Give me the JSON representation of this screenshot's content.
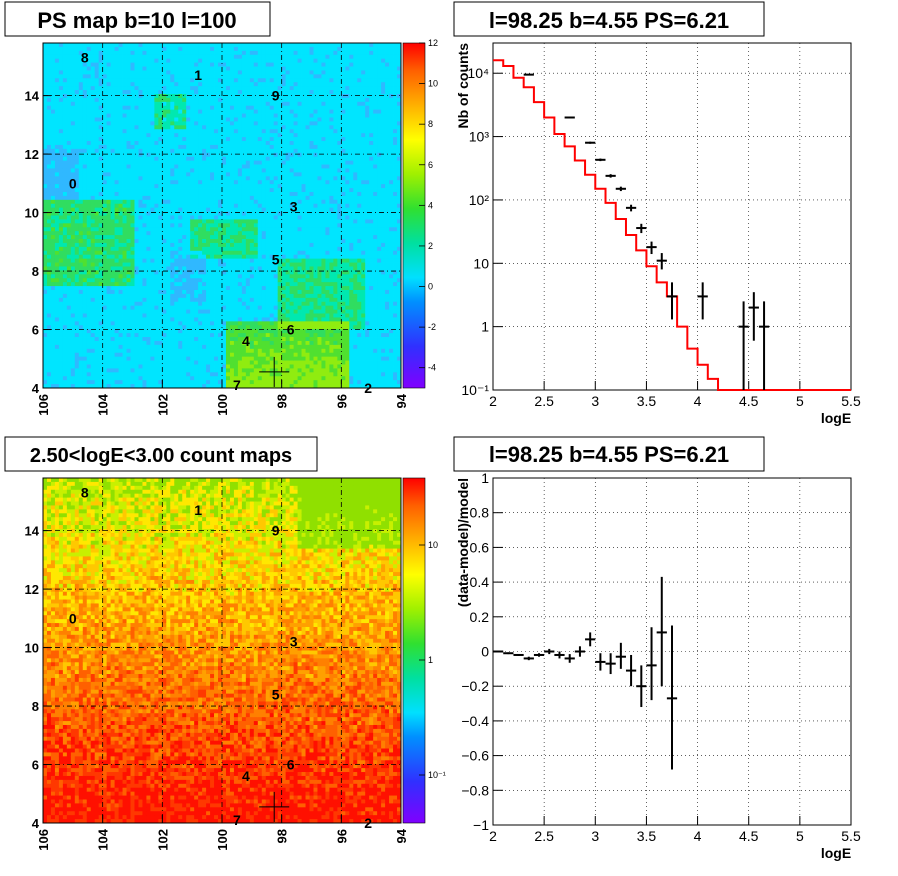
{
  "panels": {
    "top_left_title": "PS map b=10 l=100",
    "bottom_left_title": "2.50<logE<3.00 count maps",
    "top_right_title": "l=98.25 b=4.55 PS=6.21",
    "bottom_right_title": "l=98.25 b=4.55 PS=6.21"
  },
  "source_labels": [
    "0",
    "1",
    "2",
    "3",
    "4",
    "5",
    "6",
    "7",
    "8",
    "9"
  ],
  "colors": {
    "model_line": "#ff0000",
    "data_points": "#000000",
    "grid": "#000000",
    "map_top_base": "#00e5ff",
    "map_bottom_base": "#ff8000"
  },
  "chart_data": [
    {
      "type": "heatmap",
      "title": "PS map b=10 l=100",
      "x_ticks": [
        "106",
        "104",
        "102",
        "100",
        "98",
        "96",
        "94"
      ],
      "y_ticks": [
        "4",
        "6",
        "8",
        "10",
        "12",
        "14"
      ],
      "xlim": [
        106,
        94
      ],
      "ylim": [
        4,
        15.8
      ],
      "colorbar_ticks": [
        "12",
        "10",
        "8",
        "6",
        "4",
        "2",
        "0",
        "-2",
        "-4"
      ],
      "colorbar_range": [
        -5,
        12
      ],
      "source_positions": [
        {
          "label": "0",
          "l": 105.0,
          "b": 11.0
        },
        {
          "label": "1",
          "l": 100.8,
          "b": 14.7
        },
        {
          "label": "2",
          "l": 95.1,
          "b": 4.0
        },
        {
          "label": "3",
          "l": 97.6,
          "b": 10.2
        },
        {
          "label": "4",
          "l": 99.2,
          "b": 5.6
        },
        {
          "label": "5",
          "l": 98.2,
          "b": 8.4
        },
        {
          "label": "6",
          "l": 97.7,
          "b": 6.0
        },
        {
          "label": "7",
          "l": 99.5,
          "b": 4.1
        },
        {
          "label": "8",
          "l": 104.6,
          "b": 15.3
        },
        {
          "label": "9",
          "l": 98.2,
          "b": 14.0
        }
      ],
      "marker": {
        "l": 98.25,
        "b": 4.55
      }
    },
    {
      "type": "heatmap",
      "title": "2.50<logE<3.00 count maps",
      "x_ticks": [
        "106",
        "104",
        "102",
        "100",
        "98",
        "96",
        "94"
      ],
      "y_ticks": [
        "4",
        "6",
        "8",
        "10",
        "12",
        "14"
      ],
      "xlim": [
        106,
        94
      ],
      "ylim": [
        4,
        15.8
      ],
      "colorbar_ticks": [
        "10",
        "1",
        "10⁻¹"
      ],
      "colorbar_scale": "log",
      "marker": {
        "l": 98.25,
        "b": 4.55
      }
    },
    {
      "type": "line",
      "title": "l=98.25 b=4.55 PS=6.21",
      "xlabel": "logE",
      "ylabel": "Nb of counts",
      "yscale": "log",
      "xlim": [
        2,
        5.5
      ],
      "ylim": [
        0.1,
        30000
      ],
      "x_ticks": [
        "2",
        "2.5",
        "3",
        "3.5",
        "4",
        "4.5",
        "5",
        "5.5"
      ],
      "y_ticks": [
        "10⁻¹",
        "1",
        "10",
        "10²",
        "10³",
        "10⁴"
      ],
      "y_tick_values": [
        0.1,
        1,
        10,
        100,
        1000,
        10000
      ],
      "grid": true,
      "series": [
        {
          "name": "",
          "kind": "step",
          "edges": [
            2.0,
            2.1,
            2.2,
            2.3,
            2.4,
            2.5,
            2.6,
            2.7,
            2.8,
            2.9,
            3.0,
            3.1,
            3.2,
            3.3,
            3.4,
            3.5,
            3.6,
            3.7,
            3.8,
            3.9,
            4.0,
            4.1,
            4.2,
            4.3,
            4.4,
            4.5,
            4.6,
            4.7,
            4.8,
            4.9,
            5.0,
            5.1,
            5.2,
            5.3,
            5.4,
            5.5
          ],
          "values": [
            16000,
            13000,
            8500,
            6000,
            3500,
            2000,
            1100,
            700,
            420,
            250,
            150,
            90,
            50,
            28,
            16,
            9,
            5,
            3,
            1,
            0.45,
            0.25,
            0.15,
            0.1,
            0.1,
            0.1,
            0.1,
            0.1,
            0.1,
            0.1,
            0.1,
            0.1,
            0.1,
            0.1,
            0.1,
            0.1
          ]
        },
        {
          "name": "",
          "kind": "points",
          "points": [
            {
              "x": 2.35,
              "y": 9500,
              "xerr": 0.05,
              "ylo": 9300,
              "yhi": 9700
            },
            {
              "x": 2.75,
              "y": 2000,
              "xerr": 0.05,
              "ylo": 1950,
              "yhi": 2050
            },
            {
              "x": 2.95,
              "y": 800,
              "xerr": 0.05,
              "ylo": 770,
              "yhi": 830
            },
            {
              "x": 3.05,
              "y": 430,
              "xerr": 0.05,
              "ylo": 410,
              "yhi": 450
            },
            {
              "x": 3.15,
              "y": 240,
              "xerr": 0.05,
              "ylo": 225,
              "yhi": 255
            },
            {
              "x": 3.25,
              "y": 150,
              "xerr": 0.05,
              "ylo": 138,
              "yhi": 162
            },
            {
              "x": 3.35,
              "y": 75,
              "xerr": 0.05,
              "ylo": 66,
              "yhi": 84
            },
            {
              "x": 3.45,
              "y": 36,
              "xerr": 0.05,
              "ylo": 30,
              "yhi": 42
            },
            {
              "x": 3.55,
              "y": 18,
              "xerr": 0.05,
              "ylo": 14,
              "yhi": 22
            },
            {
              "x": 3.65,
              "y": 11,
              "xerr": 0.05,
              "ylo": 8,
              "yhi": 14.5
            },
            {
              "x": 3.75,
              "y": 3,
              "xerr": 0.05,
              "ylo": 1.3,
              "yhi": 5
            },
            {
              "x": 4.05,
              "y": 3,
              "xerr": 0.05,
              "ylo": 1.3,
              "yhi": 5
            },
            {
              "x": 4.45,
              "y": 1,
              "xerr": 0.05,
              "ylo": 0.1,
              "yhi": 2.5
            },
            {
              "x": 4.55,
              "y": 2,
              "xerr": 0.05,
              "ylo": 0.6,
              "yhi": 3.5
            },
            {
              "x": 4.65,
              "y": 1,
              "xerr": 0.05,
              "ylo": 0.1,
              "yhi": 2.5
            }
          ]
        }
      ]
    },
    {
      "type": "scatter",
      "title": "l=98.25 b=4.55 PS=6.21",
      "xlabel": "logE",
      "ylabel": "(data-model)/model",
      "xlim": [
        2,
        5.5
      ],
      "ylim": [
        -1,
        1
      ],
      "x_ticks": [
        "2",
        "2.5",
        "3",
        "3.5",
        "4",
        "4.5",
        "5",
        "5.5"
      ],
      "y_ticks": [
        "−1",
        "−0.8",
        "−0.6",
        "−0.4",
        "−0.2",
        "0",
        "0.2",
        "0.4",
        "0.6",
        "0.8",
        "1"
      ],
      "y_tick_values": [
        -1,
        -0.8,
        -0.6,
        -0.4,
        -0.2,
        0,
        0.2,
        0.4,
        0.6,
        0.8,
        1
      ],
      "grid": true,
      "series": [
        {
          "name": "",
          "points": [
            {
              "x": 2.05,
              "y": 0.0,
              "xerr": 0.05,
              "ylo": -0.005,
              "yhi": 0.005
            },
            {
              "x": 2.15,
              "y": -0.01,
              "xerr": 0.05,
              "ylo": -0.015,
              "yhi": -0.005
            },
            {
              "x": 2.25,
              "y": -0.02,
              "xerr": 0.05,
              "ylo": -0.025,
              "yhi": -0.015
            },
            {
              "x": 2.35,
              "y": -0.04,
              "xerr": 0.05,
              "ylo": -0.05,
              "yhi": -0.03
            },
            {
              "x": 2.45,
              "y": -0.02,
              "xerr": 0.05,
              "ylo": -0.03,
              "yhi": -0.01
            },
            {
              "x": 2.55,
              "y": 0.0,
              "xerr": 0.05,
              "ylo": -0.015,
              "yhi": 0.015
            },
            {
              "x": 2.65,
              "y": -0.02,
              "xerr": 0.05,
              "ylo": -0.04,
              "yhi": 0.0
            },
            {
              "x": 2.75,
              "y": -0.04,
              "xerr": 0.05,
              "ylo": -0.065,
              "yhi": -0.015
            },
            {
              "x": 2.85,
              "y": 0.0,
              "xerr": 0.05,
              "ylo": -0.03,
              "yhi": 0.03
            },
            {
              "x": 2.95,
              "y": 0.07,
              "xerr": 0.05,
              "ylo": 0.03,
              "yhi": 0.11
            },
            {
              "x": 3.05,
              "y": -0.06,
              "xerr": 0.05,
              "ylo": -0.11,
              "yhi": -0.01
            },
            {
              "x": 3.15,
              "y": -0.07,
              "xerr": 0.05,
              "ylo": -0.13,
              "yhi": -0.01
            },
            {
              "x": 3.25,
              "y": -0.03,
              "xerr": 0.05,
              "ylo": -0.1,
              "yhi": 0.05
            },
            {
              "x": 3.35,
              "y": -0.11,
              "xerr": 0.05,
              "ylo": -0.2,
              "yhi": -0.02
            },
            {
              "x": 3.45,
              "y": -0.2,
              "xerr": 0.05,
              "ylo": -0.32,
              "yhi": -0.08
            },
            {
              "x": 3.55,
              "y": -0.08,
              "xerr": 0.05,
              "ylo": -0.28,
              "yhi": 0.14
            },
            {
              "x": 3.65,
              "y": 0.11,
              "xerr": 0.05,
              "ylo": -0.2,
              "yhi": 0.43
            },
            {
              "x": 3.75,
              "y": -0.27,
              "xerr": 0.05,
              "ylo": -0.68,
              "yhi": 0.15
            }
          ]
        }
      ]
    }
  ]
}
